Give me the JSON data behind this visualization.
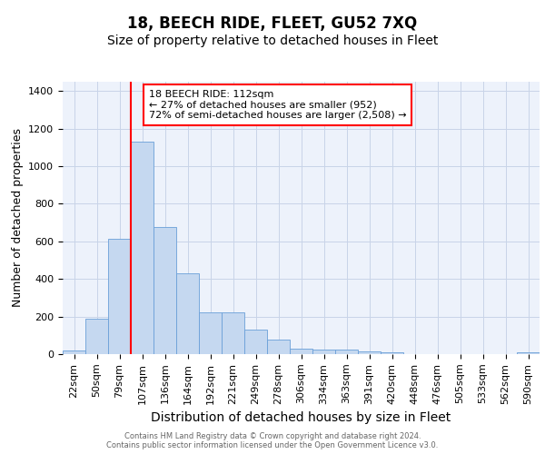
{
  "title1": "18, BEECH RIDE, FLEET, GU52 7XQ",
  "title2": "Size of property relative to detached houses in Fleet",
  "xlabel": "Distribution of detached houses by size in Fleet",
  "ylabel": "Number of detached properties",
  "categories": [
    "22sqm",
    "50sqm",
    "79sqm",
    "107sqm",
    "136sqm",
    "164sqm",
    "192sqm",
    "221sqm",
    "249sqm",
    "278sqm",
    "306sqm",
    "334sqm",
    "363sqm",
    "391sqm",
    "420sqm",
    "448sqm",
    "476sqm",
    "505sqm",
    "533sqm",
    "562sqm",
    "590sqm"
  ],
  "bar_heights": [
    20,
    190,
    615,
    1130,
    675,
    430,
    220,
    220,
    130,
    75,
    30,
    25,
    25,
    15,
    10,
    0,
    0,
    0,
    0,
    0,
    10
  ],
  "bar_color": "#c5d8f0",
  "bar_edge_color": "#6a9fd8",
  "red_line_x": 2.5,
  "annotation_text": "18 BEECH RIDE: 112sqm\n← 27% of detached houses are smaller (952)\n72% of semi-detached houses are larger (2,508) →",
  "annotation_box_color": "white",
  "annotation_box_edge_color": "red",
  "ylim": [
    0,
    1450
  ],
  "yticks": [
    0,
    200,
    400,
    600,
    800,
    1000,
    1200,
    1400
  ],
  "grid_color": "#c8d4e8",
  "footer1": "Contains HM Land Registry data © Crown copyright and database right 2024.",
  "footer2": "Contains public sector information licensed under the Open Government Licence v3.0.",
  "bg_color": "#edf2fb",
  "title1_fontsize": 12,
  "title2_fontsize": 10,
  "ylabel_fontsize": 9,
  "xlabel_fontsize": 10,
  "tick_fontsize": 8,
  "footer_fontsize": 6,
  "ann_fontsize": 8
}
